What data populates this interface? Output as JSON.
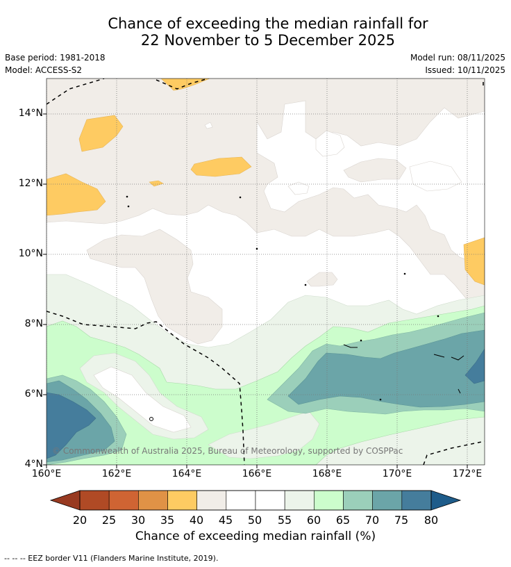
{
  "title": {
    "line1": "Chance of exceeding the median rainfall for",
    "line2": "22 November to 5 December 2025"
  },
  "meta": {
    "base_period": "Base period: 1981-2018",
    "model": "Model: ACCESS-S2",
    "model_run": "Model run: 08/11/2025",
    "issued": "Issued: 10/11/2025"
  },
  "map": {
    "lon_labels": [
      "160°E",
      "162°E",
      "164°E",
      "166°E",
      "168°E",
      "170°E",
      "172°E"
    ],
    "lat_labels": [
      "14°N",
      "12°N",
      "10°N",
      "8°N",
      "6°N",
      "4°N"
    ],
    "lon_range": [
      160,
      172.5
    ],
    "lat_range": [
      4,
      15.1
    ],
    "copyright": "© Commonwealth of Australia 2025, Bureau of Meteorology, supported by COSPPac"
  },
  "colorbar": {
    "ticks": [
      "20",
      "25",
      "30",
      "35",
      "40",
      "45",
      "50",
      "55",
      "60",
      "65",
      "70",
      "75",
      "80"
    ],
    "colors": [
      "#b04a25",
      "#cf6433",
      "#e09246",
      "#fecb62",
      "#f1ede8",
      "#ffffff",
      "#ffffff",
      "#ecf4ea",
      "#ccfdcc",
      "#9bcfba",
      "#6ba5a8",
      "#457d9c"
    ],
    "under_color": "#983a21",
    "over_color": "#1e5c8a",
    "title": "Chance of exceeding median rainfall (%)"
  },
  "legend": {
    "eez_label": "--  --  -- EEZ border V11 (Flanders Marine Institute, 2019)."
  }
}
